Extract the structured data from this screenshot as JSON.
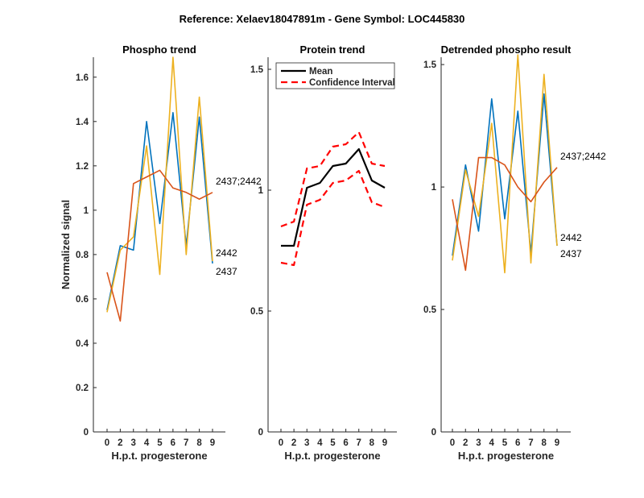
{
  "figure_title": "Reference:  Xelaev18047891m - Gene Symbol:  LOC445830",
  "colors": {
    "blue": "#0072BD",
    "orange": "#D95319",
    "yellow": "#EDB120",
    "mean": "#000000",
    "ci": "#FF0000",
    "axis": "#262626"
  },
  "chart_data": [
    {
      "type": "line",
      "title": "Phospho trend",
      "xlabel": "H.p.t. progesterone",
      "ylabel": "Normalized signal",
      "categories": [
        "0",
        "2",
        "3",
        "4",
        "5",
        "6",
        "7",
        "8",
        "9"
      ],
      "ylim": [
        0,
        1.69
      ],
      "yticks": [
        0,
        0.2,
        0.4,
        0.6,
        0.8,
        1,
        1.2,
        1.4,
        1.6
      ],
      "ytick_labels": [
        "0",
        "0.2",
        "0.4",
        "0.6",
        "0.8",
        "1",
        "1.2",
        "1.4",
        "1.6"
      ],
      "grid": false,
      "series": [
        {
          "name": "2437",
          "color": "blue",
          "values": [
            0.55,
            0.84,
            0.82,
            1.4,
            0.94,
            1.44,
            0.84,
            1.42,
            0.76
          ]
        },
        {
          "name": "2442",
          "color": "yellow",
          "values": [
            0.54,
            0.82,
            0.88,
            1.29,
            0.71,
            1.69,
            0.8,
            1.51,
            0.77
          ]
        },
        {
          "name": "2437;2442",
          "color": "orange",
          "values": [
            0.72,
            0.5,
            1.12,
            1.15,
            1.18,
            1.1,
            1.08,
            1.05,
            1.08
          ]
        }
      ]
    },
    {
      "type": "line",
      "title": "Protein trend",
      "xlabel": "H.p.t. progesterone",
      "categories": [
        "0",
        "2",
        "3",
        "4",
        "5",
        "6",
        "7",
        "8",
        "9"
      ],
      "ylim": [
        0,
        1.55
      ],
      "yticks": [
        0,
        0.5,
        1,
        1.5
      ],
      "ytick_labels": [
        "0",
        "0.5",
        "1",
        "1.5"
      ],
      "grid": false,
      "legend": {
        "placement": "top-left",
        "entries": [
          "Mean",
          "Confidence Interval"
        ]
      },
      "series": [
        {
          "name": "Mean",
          "color": "mean",
          "style": "solid",
          "values": [
            0.77,
            0.77,
            1.01,
            1.03,
            1.1,
            1.11,
            1.17,
            1.04,
            1.01
          ]
        },
        {
          "name": "Confidence Interval",
          "color": "ci",
          "style": "dashed",
          "values": [
            0.85,
            0.87,
            1.09,
            1.1,
            1.18,
            1.19,
            1.24,
            1.11,
            1.1
          ]
        },
        {
          "name": "Confidence Interval",
          "color": "ci",
          "style": "dashed",
          "values": [
            0.7,
            0.69,
            0.94,
            0.96,
            1.03,
            1.04,
            1.08,
            0.95,
            0.93
          ]
        }
      ]
    },
    {
      "type": "line",
      "title": "Detrended phospho result",
      "xlabel": "H.p.t. progesterone",
      "categories": [
        "0",
        "2",
        "3",
        "4",
        "5",
        "6",
        "7",
        "8",
        "9"
      ],
      "ylim": [
        0,
        1.53
      ],
      "yticks": [
        0,
        0.5,
        1,
        1.5
      ],
      "ytick_labels": [
        "0",
        "0.5",
        "1",
        "1.5"
      ],
      "grid": false,
      "series": [
        {
          "name": "2437",
          "color": "blue",
          "values": [
            0.72,
            1.09,
            0.82,
            1.36,
            0.87,
            1.31,
            0.73,
            1.38,
            0.76
          ]
        },
        {
          "name": "2442",
          "color": "yellow",
          "values": [
            0.7,
            1.07,
            0.88,
            1.26,
            0.65,
            1.54,
            0.69,
            1.46,
            0.76
          ]
        },
        {
          "name": "2437;2442",
          "color": "orange",
          "values": [
            0.95,
            0.66,
            1.12,
            1.12,
            1.09,
            1.0,
            0.94,
            1.02,
            1.08
          ]
        }
      ]
    }
  ]
}
